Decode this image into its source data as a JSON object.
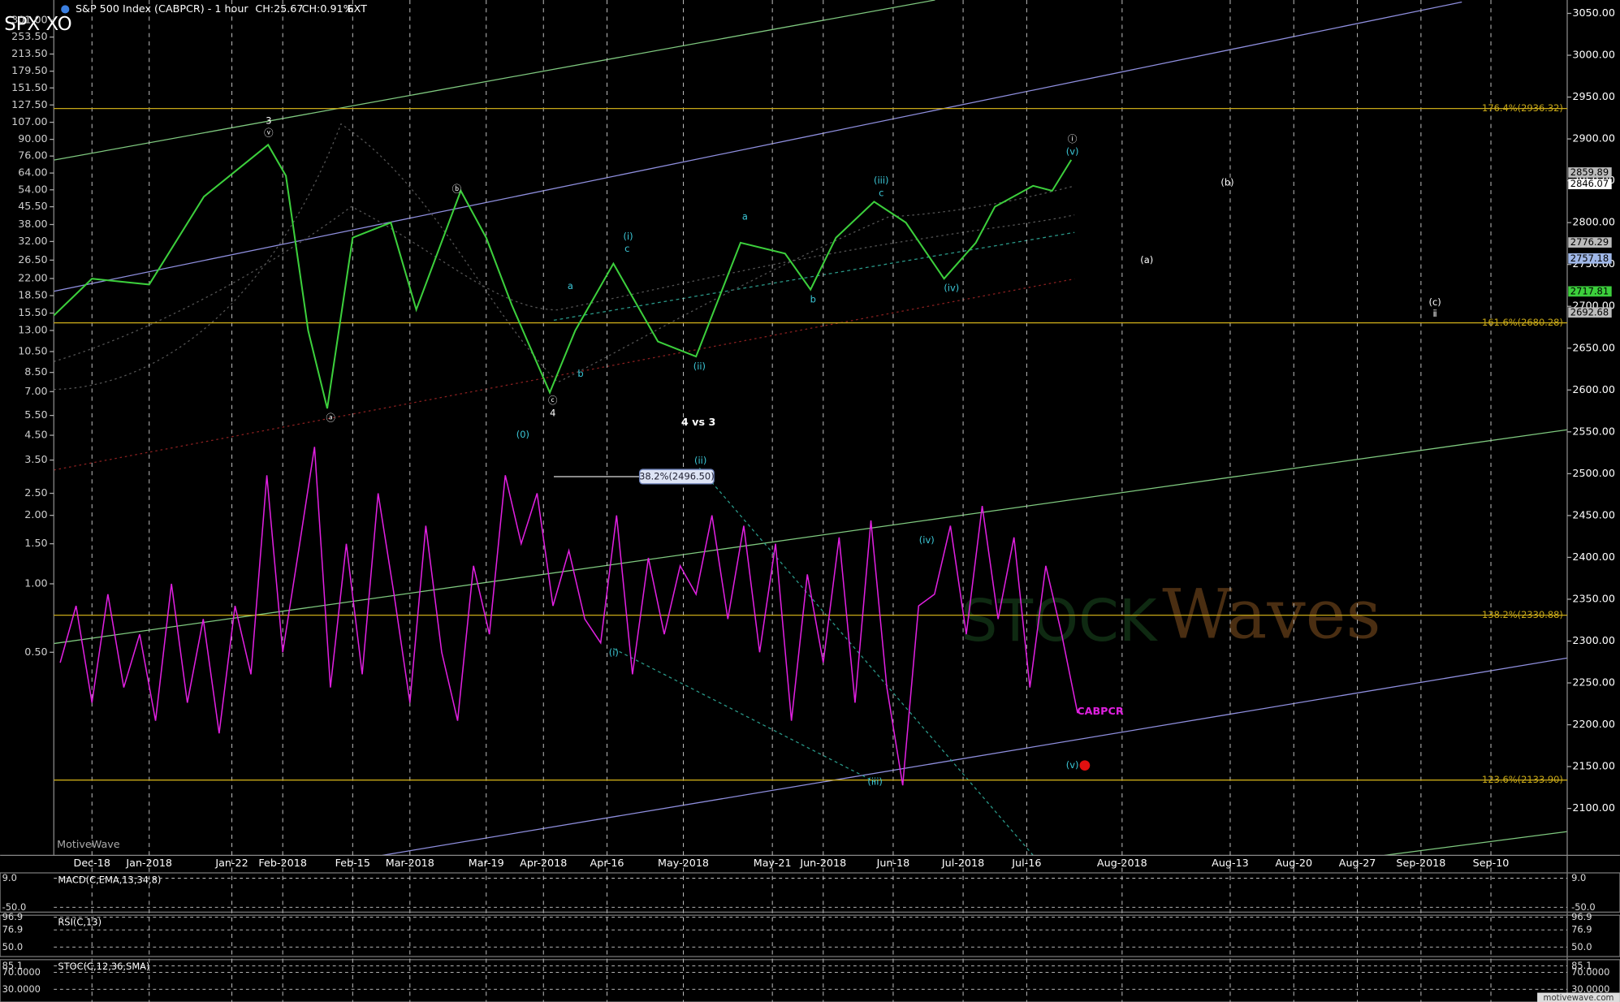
{
  "header": {
    "symbol": "SPX XO",
    "title": "S&P 500 Index (CABPCR) - 1 hour",
    "change": "CH:25.67",
    "change_pct": "CH:0.91%",
    "session": "EXT"
  },
  "chart_data": {
    "type": "line",
    "xlim": [
      -15,
      223
    ],
    "xticks": [
      {
        "value": -9,
        "label": "Dec-18"
      },
      {
        "value": 0,
        "label": "Jan-2018"
      },
      {
        "value": 13,
        "label": "Jan-22"
      },
      {
        "value": 21,
        "label": "Feb-2018"
      },
      {
        "value": 32,
        "label": "Feb-15"
      },
      {
        "value": 41,
        "label": "Mar-2018"
      },
      {
        "value": 53,
        "label": "Mar-19"
      },
      {
        "value": 62,
        "label": "Apr-2018"
      },
      {
        "value": 72,
        "label": "Apr-16"
      },
      {
        "value": 84,
        "label": "May-2018"
      },
      {
        "value": 98,
        "label": "May-21"
      },
      {
        "value": 106,
        "label": "Jun-2018"
      },
      {
        "value": 117,
        "label": "Jun-18"
      },
      {
        "value": 128,
        "label": "Jul-2018"
      },
      {
        "value": 138,
        "label": "Jul-16"
      },
      {
        "value": 153,
        "label": "Aug-2018"
      },
      {
        "value": 170,
        "label": "Aug-13"
      },
      {
        "value": 180,
        "label": "Aug-20"
      },
      {
        "value": 190,
        "label": "Aug-27"
      },
      {
        "value": 200,
        "label": "Sep-2018"
      },
      {
        "value": 211,
        "label": "Sep-10"
      }
    ],
    "grid": true,
    "ylim": [
      2044,
      3066
    ],
    "yticks": [
      {
        "value": 2100,
        "label": "2100.00"
      },
      {
        "value": 2150,
        "label": "2150.00"
      },
      {
        "value": 2200,
        "label": "2200.00"
      },
      {
        "value": 2250,
        "label": "2250.00"
      },
      {
        "value": 2300,
        "label": "2300.00"
      },
      {
        "value": 2350,
        "label": "2350.00"
      },
      {
        "value": 2400,
        "label": "2400.00"
      },
      {
        "value": 2450,
        "label": "2450.00"
      },
      {
        "value": 2500,
        "label": "2500.00"
      },
      {
        "value": 2550,
        "label": "2550.00"
      },
      {
        "value": 2600,
        "label": "2600.00"
      },
      {
        "value": 2650,
        "label": "2650.00"
      },
      {
        "value": 2700,
        "label": "2700.00"
      },
      {
        "value": 2750,
        "label": "2750.00"
      },
      {
        "value": 2800,
        "label": "2800.00"
      },
      {
        "value": 2850,
        "label": "2850.00"
      },
      {
        "value": 2900,
        "label": "2900.00"
      },
      {
        "value": 2950,
        "label": "2950.00"
      },
      {
        "value": 3000,
        "label": "3000.00"
      },
      {
        "value": 3050,
        "label": "3050.00"
      }
    ],
    "y2lim": [
      0.064,
      369
    ],
    "y2_log": true,
    "y2ticks": [
      {
        "value": 0.5,
        "label": "0.50"
      },
      {
        "value": 1,
        "label": "1.00"
      },
      {
        "value": 1.5,
        "label": "1.50"
      },
      {
        "value": 2,
        "label": "2.00"
      },
      {
        "value": 2.5,
        "label": "2.50"
      },
      {
        "value": 3.5,
        "label": "3.50"
      },
      {
        "value": 4.5,
        "label": "4.50"
      },
      {
        "value": 5.5,
        "label": "5.50"
      },
      {
        "value": 7,
        "label": "7.00"
      },
      {
        "value": 8.5,
        "label": "8.50"
      },
      {
        "value": 10.5,
        "label": "10.50"
      },
      {
        "value": 13,
        "label": "13.00"
      },
      {
        "value": 15.5,
        "label": "15.50"
      },
      {
        "value": 18.5,
        "label": "18.50"
      },
      {
        "value": 22,
        "label": "22.00"
      },
      {
        "value": 26.5,
        "label": "26.50"
      },
      {
        "value": 32,
        "label": "32.00"
      },
      {
        "value": 38,
        "label": "38.00"
      },
      {
        "value": 45.5,
        "label": "45.50"
      },
      {
        "value": 54,
        "label": "54.00"
      },
      {
        "value": 64,
        "label": "64.00"
      },
      {
        "value": 76,
        "label": "76.00"
      },
      {
        "value": 90,
        "label": "90.00"
      },
      {
        "value": 107,
        "label": "107.00"
      },
      {
        "value": 127.5,
        "label": "127.50"
      },
      {
        "value": 151.5,
        "label": "151.50"
      },
      {
        "value": 179.5,
        "label": "179.50"
      },
      {
        "value": 213.5,
        "label": "213.50"
      },
      {
        "value": 253.5,
        "label": "253.50"
      },
      {
        "value": 301,
        "label": "301.00"
      }
    ],
    "series": [
      {
        "name": "S&P 500 Index",
        "color": "#3ccf3c",
        "x": [
          -15,
          -9,
          0,
          8.6,
          18.7,
          21.5,
          25,
          28,
          32,
          38,
          42,
          49,
          53,
          57,
          63,
          67,
          73,
          80,
          86,
          93,
          100,
          104,
          108,
          114,
          119,
          125,
          130,
          133,
          139,
          142,
          145
        ],
        "values": [
          2689,
          2733,
          2726,
          2831,
          2893,
          2856,
          2671,
          2578,
          2782,
          2800,
          2696,
          2838,
          2782,
          2702,
          2597,
          2671,
          2751,
          2658,
          2640,
          2776,
          2763,
          2720,
          2782,
          2825,
          2800,
          2733,
          2776,
          2819,
          2844,
          2838,
          2875
        ]
      },
      {
        "name": "CABPCR",
        "color": "#e020e0",
        "axis": "y2",
        "x": [
          -14,
          -11.5,
          -9,
          -6.5,
          -4,
          -1.5,
          1,
          3.5,
          6,
          8.5,
          11,
          13.5,
          16,
          18.5,
          21,
          23.5,
          26,
          28.5,
          31,
          33.5,
          36,
          38.5,
          41,
          43.5,
          46,
          48.5,
          51,
          53.5,
          56,
          58.5,
          61,
          63.5,
          66,
          68.5,
          71,
          73.5,
          76,
          78.5,
          81,
          83.5,
          86,
          88.5,
          91,
          93.5,
          96,
          98.5,
          101,
          103.5,
          106,
          108.5,
          111,
          113.5,
          116,
          118.5,
          121,
          123.5,
          126,
          128.5,
          131,
          133.5,
          136,
          138.5,
          141,
          143.5,
          146
        ],
        "values": [
          0.45,
          0.8,
          0.3,
          0.9,
          0.35,
          0.6,
          0.25,
          1.0,
          0.3,
          0.7,
          0.22,
          0.8,
          0.4,
          3.0,
          0.5,
          1.4,
          4.0,
          0.35,
          1.5,
          0.4,
          2.5,
          0.9,
          0.3,
          1.8,
          0.5,
          0.25,
          1.2,
          0.6,
          3.0,
          1.5,
          2.5,
          0.8,
          1.4,
          0.7,
          0.55,
          2.0,
          0.4,
          1.3,
          0.6,
          1.2,
          0.9,
          2.0,
          0.7,
          1.8,
          0.5,
          1.5,
          0.25,
          1.1,
          0.45,
          1.6,
          0.3,
          1.9,
          0.35,
          0.13,
          0.8,
          0.9,
          1.8,
          0.6,
          2.2,
          0.7,
          1.6,
          0.35,
          1.2,
          0.6,
          0.27
        ]
      }
    ],
    "levels": [
      {
        "value": 2936.32,
        "label": "176.4%(2936.32)"
      },
      {
        "value": 2680.28,
        "label": "161.6%(2680.28)"
      },
      {
        "value": 2330.88,
        "label": "138.2%(2330.88)"
      },
      {
        "value": 2133.9,
        "label": "123.6%(2133.90)"
      }
    ],
    "price_labels": [
      2859.89,
      2846.07,
      2776.29,
      2757.18,
      2717.81,
      2692.68
    ],
    "retracement": {
      "value": 2496.5,
      "label": "38.2%(2496.50)"
    },
    "annotations": [
      "3",
      "ⓥ",
      "ⓐ",
      "ⓑ",
      "ⓒ",
      "4",
      "(i)",
      "c",
      "a",
      "b",
      "(ii)",
      "a",
      "b",
      "(iii)",
      "c",
      "(iv)",
      "ⓘ",
      "(v)",
      "(b)",
      "(a)",
      "(c)",
      "ⅱ",
      "(0)",
      "(ii)",
      "(i)",
      "(iii)",
      "(iv)",
      "(v)",
      "4 vs 3",
      "CABPCR"
    ],
    "watermark": "MotiveWave",
    "logo_prefix": "STOCK",
    "logo": "Waves"
  },
  "indicators": [
    {
      "name": "MACD(C,EMA,13,34,8)",
      "ylim": [
        -60,
        20
      ],
      "levels": [
        {
          "value": 9,
          "label": "9.0"
        },
        {
          "value": -50,
          "label": "-50.0"
        }
      ]
    },
    {
      "name": "RSI(C,13)",
      "ylim": [
        35,
        100
      ],
      "levels": [
        96.9,
        76.9,
        {
          "value": 50,
          "label": "50.0"
        }
      ]
    },
    {
      "name": "STOC(C,12,36,SMA)",
      "ylim": [
        0,
        100
      ],
      "levels": [
        85.1,
        {
          "value": 70,
          "label": "70.0000"
        },
        {
          "value": 30,
          "label": "30.0000"
        }
      ]
    }
  ],
  "footer": "motivewave.com"
}
